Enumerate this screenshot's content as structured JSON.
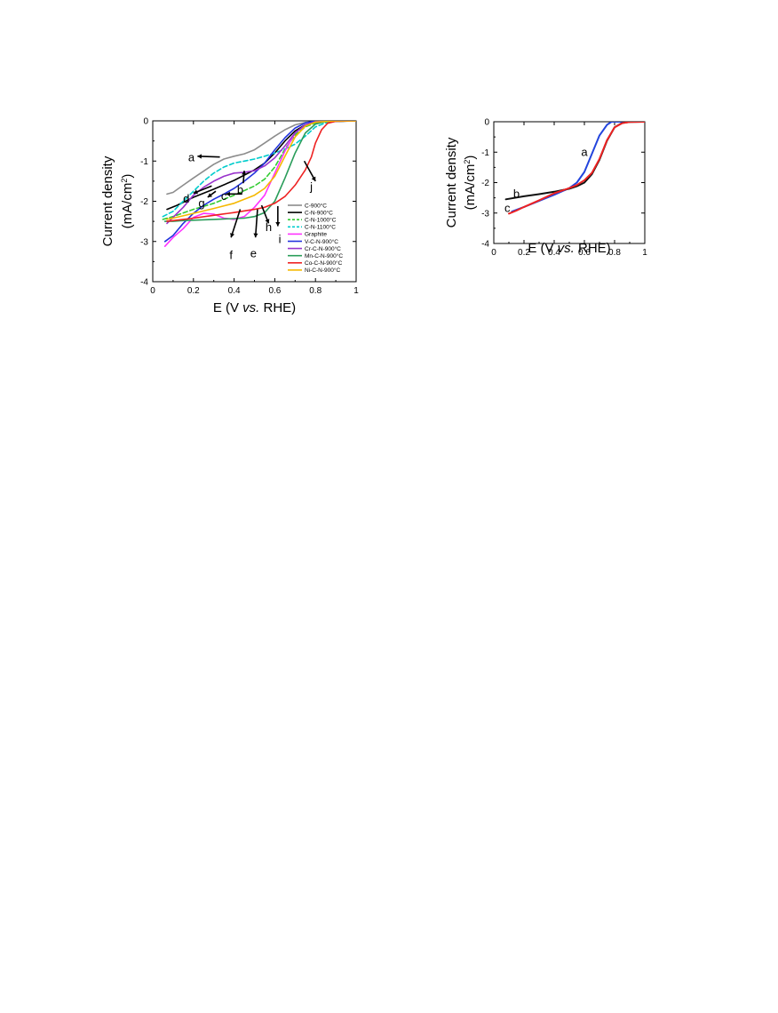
{
  "chart_data": [
    {
      "type": "line",
      "xlabel": {
        "main": "E (V ",
        "italic": "vs.",
        "rest": " RHE)"
      },
      "ylabel": {
        "line1": "Current density",
        "line2_pre": "(mA/cm",
        "line2_sup": "2",
        "line2_post": ")"
      },
      "xlim": [
        0,
        1
      ],
      "ylim": [
        -4,
        0
      ],
      "xticks": [
        0,
        0.2,
        0.4,
        0.6,
        0.8,
        1
      ],
      "xtick_labels": [
        "0",
        "0.2",
        "0.4",
        "0.6",
        "0.8",
        "1"
      ],
      "yticks": [
        0,
        -1,
        -2,
        -3,
        -4
      ],
      "ytick_labels": [
        "0",
        "-1",
        "-2",
        "-3",
        "-4"
      ],
      "legend_position": "lower-right",
      "series": [
        {
          "name": "C-900°C",
          "color": "#8c8c8c",
          "dash": false,
          "points": [
            [
              0.07,
              -1.82
            ],
            [
              0.1,
              -1.78
            ],
            [
              0.15,
              -1.6
            ],
            [
              0.2,
              -1.42
            ],
            [
              0.25,
              -1.25
            ],
            [
              0.3,
              -1.08
            ],
            [
              0.35,
              -0.95
            ],
            [
              0.4,
              -0.88
            ],
            [
              0.45,
              -0.82
            ],
            [
              0.5,
              -0.72
            ],
            [
              0.55,
              -0.55
            ],
            [
              0.6,
              -0.38
            ],
            [
              0.65,
              -0.22
            ],
            [
              0.7,
              -0.1
            ],
            [
              0.75,
              -0.04
            ],
            [
              0.8,
              -0.02
            ],
            [
              0.9,
              0
            ],
            [
              1.0,
              0
            ]
          ]
        },
        {
          "name": "C-N-900°C",
          "color": "#000000",
          "dash": false,
          "points": [
            [
              0.07,
              -2.2
            ],
            [
              0.12,
              -2.1
            ],
            [
              0.2,
              -1.9
            ],
            [
              0.3,
              -1.7
            ],
            [
              0.4,
              -1.48
            ],
            [
              0.5,
              -1.22
            ],
            [
              0.55,
              -1.05
            ],
            [
              0.6,
              -0.8
            ],
            [
              0.65,
              -0.5
            ],
            [
              0.7,
              -0.25
            ],
            [
              0.75,
              -0.1
            ],
            [
              0.8,
              -0.03
            ],
            [
              0.9,
              0
            ],
            [
              1.0,
              0
            ]
          ]
        },
        {
          "name": "C-N-1000°C",
          "color": "#33cc33",
          "dash": true,
          "points": [
            [
              0.05,
              -2.45
            ],
            [
              0.1,
              -2.38
            ],
            [
              0.2,
              -2.2
            ],
            [
              0.3,
              -2.05
            ],
            [
              0.4,
              -1.85
            ],
            [
              0.5,
              -1.62
            ],
            [
              0.55,
              -1.45
            ],
            [
              0.6,
              -1.15
            ],
            [
              0.65,
              -0.7
            ],
            [
              0.7,
              -0.35
            ],
            [
              0.75,
              -0.15
            ],
            [
              0.8,
              -0.05
            ],
            [
              0.9,
              0
            ],
            [
              1.0,
              0
            ]
          ]
        },
        {
          "name": "C-N-1100°C",
          "color": "#00cccc",
          "dash": true,
          "points": [
            [
              0.05,
              -2.38
            ],
            [
              0.1,
              -2.25
            ],
            [
              0.15,
              -2.0
            ],
            [
              0.2,
              -1.75
            ],
            [
              0.25,
              -1.5
            ],
            [
              0.3,
              -1.3
            ],
            [
              0.35,
              -1.15
            ],
            [
              0.4,
              -1.05
            ],
            [
              0.45,
              -1.0
            ],
            [
              0.5,
              -0.95
            ],
            [
              0.55,
              -0.88
            ],
            [
              0.6,
              -0.8
            ],
            [
              0.65,
              -0.7
            ],
            [
              0.7,
              -0.58
            ],
            [
              0.75,
              -0.38
            ],
            [
              0.8,
              -0.15
            ],
            [
              0.85,
              -0.05
            ],
            [
              0.9,
              -0.01
            ],
            [
              1.0,
              0
            ]
          ]
        },
        {
          "name": "Graphite",
          "color": "#ff33ff",
          "dash": false,
          "points": [
            [
              0.06,
              -3.12
            ],
            [
              0.1,
              -2.9
            ],
            [
              0.15,
              -2.68
            ],
            [
              0.2,
              -2.4
            ],
            [
              0.25,
              -2.3
            ],
            [
              0.3,
              -2.32
            ],
            [
              0.35,
              -2.42
            ],
            [
              0.4,
              -2.45
            ],
            [
              0.45,
              -2.38
            ],
            [
              0.5,
              -2.15
            ],
            [
              0.55,
              -1.85
            ],
            [
              0.6,
              -1.3
            ],
            [
              0.65,
              -0.75
            ],
            [
              0.7,
              -0.3
            ],
            [
              0.75,
              -0.1
            ],
            [
              0.8,
              -0.03
            ],
            [
              0.9,
              0
            ],
            [
              1.0,
              0
            ]
          ]
        },
        {
          "name": "V-C-N-900°C",
          "color": "#2233dd",
          "dash": false,
          "points": [
            [
              0.06,
              -3.0
            ],
            [
              0.1,
              -2.85
            ],
            [
              0.15,
              -2.55
            ],
            [
              0.2,
              -2.3
            ],
            [
              0.25,
              -2.1
            ],
            [
              0.3,
              -1.95
            ],
            [
              0.35,
              -1.82
            ],
            [
              0.4,
              -1.68
            ],
            [
              0.45,
              -1.5
            ],
            [
              0.5,
              -1.3
            ],
            [
              0.55,
              -1.05
            ],
            [
              0.6,
              -0.72
            ],
            [
              0.65,
              -0.42
            ],
            [
              0.7,
              -0.18
            ],
            [
              0.75,
              -0.05
            ],
            [
              0.8,
              0
            ],
            [
              1.0,
              0
            ]
          ]
        },
        {
          "name": "Cr-C-N-900°C",
          "color": "#9933cc",
          "dash": false,
          "points": [
            [
              0.07,
              -2.55
            ],
            [
              0.1,
              -2.4
            ],
            [
              0.15,
              -2.15
            ],
            [
              0.2,
              -1.85
            ],
            [
              0.25,
              -1.65
            ],
            [
              0.3,
              -1.5
            ],
            [
              0.35,
              -1.38
            ],
            [
              0.4,
              -1.3
            ],
            [
              0.45,
              -1.28
            ],
            [
              0.5,
              -1.24
            ],
            [
              0.55,
              -1.12
            ],
            [
              0.6,
              -0.92
            ],
            [
              0.65,
              -0.62
            ],
            [
              0.7,
              -0.3
            ],
            [
              0.75,
              -0.1
            ],
            [
              0.8,
              -0.02
            ],
            [
              1.0,
              0
            ]
          ]
        },
        {
          "name": "Mn-C-N-900°C",
          "color": "#2a9d5a",
          "dash": false,
          "points": [
            [
              0.06,
              -2.5
            ],
            [
              0.1,
              -2.5
            ],
            [
              0.15,
              -2.48
            ],
            [
              0.2,
              -2.47
            ],
            [
              0.3,
              -2.45
            ],
            [
              0.4,
              -2.43
            ],
            [
              0.45,
              -2.42
            ],
            [
              0.5,
              -2.38
            ],
            [
              0.55,
              -2.28
            ],
            [
              0.6,
              -2.0
            ],
            [
              0.65,
              -1.42
            ],
            [
              0.7,
              -0.8
            ],
            [
              0.75,
              -0.3
            ],
            [
              0.8,
              -0.08
            ],
            [
              0.85,
              -0.02
            ],
            [
              1.0,
              0
            ]
          ]
        },
        {
          "name": "Co-C-N-900°C",
          "color": "#ee2222",
          "dash": false,
          "points": [
            [
              0.07,
              -2.5
            ],
            [
              0.15,
              -2.45
            ],
            [
              0.2,
              -2.42
            ],
            [
              0.3,
              -2.35
            ],
            [
              0.4,
              -2.28
            ],
            [
              0.5,
              -2.2
            ],
            [
              0.55,
              -2.15
            ],
            [
              0.6,
              -2.05
            ],
            [
              0.65,
              -1.88
            ],
            [
              0.7,
              -1.6
            ],
            [
              0.75,
              -1.22
            ],
            [
              0.78,
              -0.9
            ],
            [
              0.8,
              -0.55
            ],
            [
              0.83,
              -0.22
            ],
            [
              0.86,
              -0.06
            ],
            [
              0.9,
              -0.01
            ],
            [
              1.0,
              0
            ]
          ]
        },
        {
          "name": "Ni-C-N-900°C",
          "color": "#f5b800",
          "dash": false,
          "points": [
            [
              0.07,
              -2.45
            ],
            [
              0.1,
              -2.42
            ],
            [
              0.2,
              -2.3
            ],
            [
              0.3,
              -2.18
            ],
            [
              0.4,
              -2.05
            ],
            [
              0.5,
              -1.85
            ],
            [
              0.55,
              -1.68
            ],
            [
              0.6,
              -1.38
            ],
            [
              0.65,
              -0.88
            ],
            [
              0.7,
              -0.4
            ],
            [
              0.75,
              -0.13
            ],
            [
              0.8,
              -0.03
            ],
            [
              0.9,
              0
            ],
            [
              1.0,
              0
            ]
          ]
        }
      ],
      "annotations": [
        {
          "text": "a",
          "x": 0.19,
          "y": -0.92,
          "to": [
            0.22,
            -0.88
          ],
          "from": [
            0.33,
            -0.9
          ]
        },
        {
          "text": "b",
          "x": 0.43,
          "y": -1.72,
          "to": [
            0.45,
            -1.24
          ],
          "from": [
            0.445,
            -1.55
          ]
        },
        {
          "text": "c",
          "x": 0.35,
          "y": -1.88,
          "to": [
            0.36,
            -1.82
          ],
          "from": [
            0.44,
            -1.82
          ]
        },
        {
          "text": "d",
          "x": 0.165,
          "y": -1.95,
          "to": [
            0.2,
            -1.8
          ],
          "from": [
            0.29,
            -1.62
          ]
        },
        {
          "text": "g",
          "x": 0.24,
          "y": -2.06,
          "to": [
            0.27,
            -1.9
          ],
          "from": [
            0.31,
            -1.75
          ]
        },
        {
          "text": "f",
          "x": 0.385,
          "y": -3.35,
          "to": [
            0.385,
            -2.9
          ],
          "from": [
            0.43,
            -2.2
          ]
        },
        {
          "text": "e",
          "x": 0.495,
          "y": -3.3,
          "to": [
            0.505,
            -2.9
          ],
          "from": [
            0.515,
            -2.2
          ]
        },
        {
          "text": "h",
          "x": 0.57,
          "y": -2.65,
          "to": [
            0.57,
            -2.55
          ],
          "from": [
            0.535,
            -2.1
          ]
        },
        {
          "text": "i",
          "x": 0.625,
          "y": -2.95,
          "to": [
            0.615,
            -2.62
          ],
          "from": [
            0.615,
            -2.12
          ]
        },
        {
          "text": "j",
          "x": 0.78,
          "y": -1.65,
          "to": [
            0.8,
            -1.5
          ],
          "from": [
            0.745,
            -1.0
          ]
        }
      ]
    },
    {
      "type": "line",
      "xlabel": {
        "main": "E (V ",
        "italic": "vs.",
        "rest": " RHE)"
      },
      "ylabel": {
        "line1": "Current density",
        "line2_pre": "(mA/cm",
        "line2_sup": "2",
        "line2_post": ")"
      },
      "xlim": [
        0,
        1
      ],
      "ylim": [
        -4,
        0
      ],
      "xticks": [
        0,
        0.2,
        0.4,
        0.6,
        0.8,
        1
      ],
      "xtick_labels": [
        "0",
        "0.2",
        "0.4",
        "0.6",
        "0.8",
        "1"
      ],
      "yticks": [
        0,
        -1,
        -2,
        -3,
        -4
      ],
      "ytick_labels": [
        "0",
        "-1",
        "-2",
        "-3",
        "-4"
      ],
      "series": [
        {
          "color": "#2244dd",
          "dash": false,
          "points": [
            [
              0.12,
              -2.95
            ],
            [
              0.2,
              -2.8
            ],
            [
              0.3,
              -2.6
            ],
            [
              0.4,
              -2.4
            ],
            [
              0.5,
              -2.18
            ],
            [
              0.55,
              -2.0
            ],
            [
              0.6,
              -1.65
            ],
            [
              0.65,
              -1.05
            ],
            [
              0.7,
              -0.45
            ],
            [
              0.75,
              -0.1
            ],
            [
              0.78,
              0
            ],
            [
              1.0,
              0
            ]
          ]
        },
        {
          "color": "#111111",
          "dash": false,
          "points": [
            [
              0.08,
              -2.55
            ],
            [
              0.2,
              -2.45
            ],
            [
              0.3,
              -2.38
            ],
            [
              0.4,
              -2.3
            ],
            [
              0.5,
              -2.2
            ],
            [
              0.55,
              -2.12
            ],
            [
              0.6,
              -2.0
            ],
            [
              0.65,
              -1.72
            ],
            [
              0.7,
              -1.25
            ],
            [
              0.75,
              -0.62
            ],
            [
              0.8,
              -0.18
            ],
            [
              0.85,
              -0.04
            ],
            [
              0.9,
              -0.01
            ],
            [
              1.0,
              0
            ]
          ]
        },
        {
          "color": "#ee2222",
          "dash": false,
          "points": [
            [
              0.1,
              -3.02
            ],
            [
              0.15,
              -2.92
            ],
            [
              0.2,
              -2.8
            ],
            [
              0.3,
              -2.58
            ],
            [
              0.4,
              -2.35
            ],
            [
              0.5,
              -2.18
            ],
            [
              0.55,
              -2.08
            ],
            [
              0.6,
              -1.92
            ],
            [
              0.65,
              -1.68
            ],
            [
              0.7,
              -1.22
            ],
            [
              0.75,
              -0.6
            ],
            [
              0.8,
              -0.18
            ],
            [
              0.85,
              -0.05
            ],
            [
              0.9,
              -0.01
            ],
            [
              1.0,
              0
            ]
          ]
        }
      ],
      "annotations": [
        {
          "text": "a",
          "x": 0.6,
          "y": -1.0
        },
        {
          "text": "b",
          "x": 0.15,
          "y": -2.38
        },
        {
          "text": "c",
          "x": 0.09,
          "y": -2.85
        }
      ]
    }
  ]
}
